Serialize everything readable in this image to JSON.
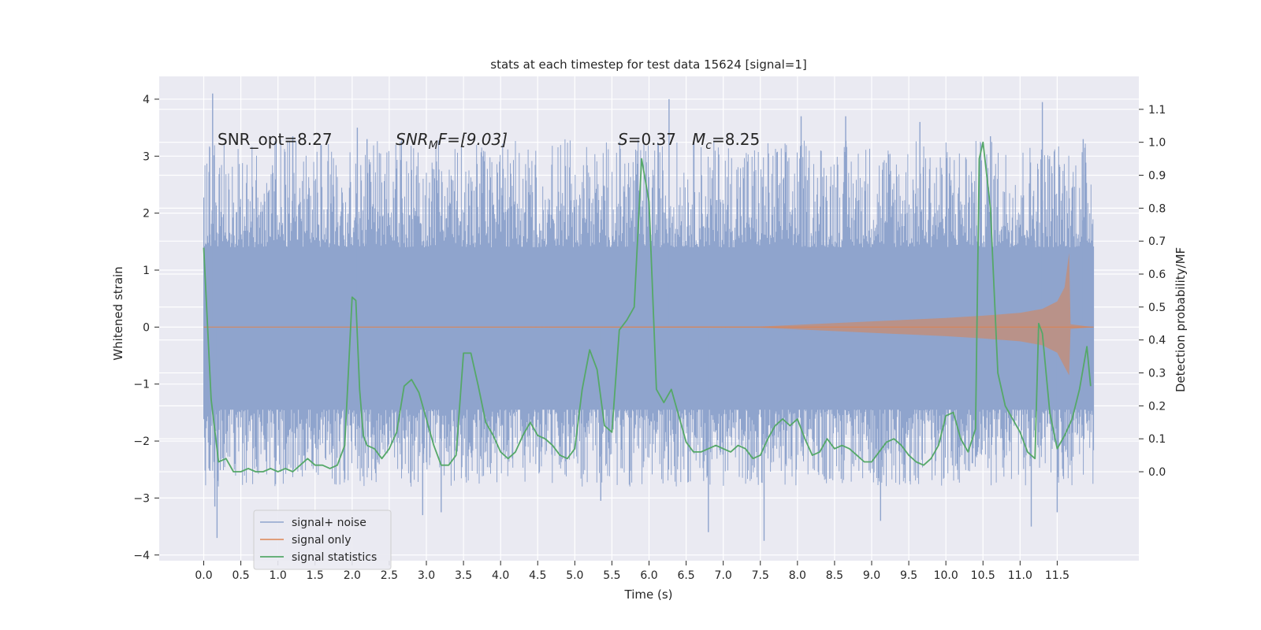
{
  "chart_data": {
    "type": "line",
    "title": "stats at each timestep for test data 15624 [signal=1]",
    "xlabel": "Time (s)",
    "ylabel": "Whitened strain",
    "y2label": "Detection probability/MF",
    "xlim": [
      -0.6,
      12.6
    ],
    "ylim": [
      -4.1,
      4.4
    ],
    "y2lim": [
      -0.27,
      1.2
    ],
    "x_ticks": [
      0.0,
      0.5,
      1.0,
      1.5,
      2.0,
      2.5,
      3.0,
      3.5,
      4.0,
      4.5,
      5.0,
      5.5,
      6.0,
      6.5,
      7.0,
      7.5,
      8.0,
      8.5,
      9.0,
      9.5,
      10.0,
      10.5,
      11.0,
      11.5
    ],
    "x_tick_labels": [
      "0.0",
      "0.5",
      "1.0",
      "1.5",
      "2.0",
      "2.5",
      "3.0",
      "3.5",
      "4.0",
      "4.5",
      "5.0",
      "5.5",
      "6.0",
      "6.5",
      "7.0",
      "7.5",
      "8.0",
      "8.5",
      "9.0",
      "9.5",
      "10.0",
      "10.5",
      "11.0",
      "11.5"
    ],
    "y_ticks": [
      -4,
      -3,
      -2,
      -1,
      0,
      1,
      2,
      3,
      4
    ],
    "y_tick_labels": [
      "−4",
      "−3",
      "−2",
      "−1",
      "0",
      "1",
      "2",
      "3",
      "4"
    ],
    "y2_ticks": [
      0.0,
      0.1,
      0.2,
      0.3,
      0.4,
      0.5,
      0.6,
      0.7,
      0.8,
      0.9,
      1.0,
      1.1
    ],
    "y2_tick_labels": [
      "0.0",
      "0.1",
      "0.2",
      "0.3",
      "0.4",
      "0.5",
      "0.6",
      "0.7",
      "0.8",
      "0.9",
      "1.0",
      "1.1"
    ],
    "grid": true,
    "legend_position": "lower-left",
    "annotations": {
      "snr_opt": "SNR_opt=8.27",
      "snr_mf_main": "SNR",
      "snr_mf_sub": "M",
      "snr_mf_rest": "F=[9.03]",
      "s_main": "S",
      "s_rest": "=0.37",
      "mc_main": "M",
      "mc_sub": "c",
      "mc_rest": "=8.25"
    },
    "colors": {
      "background": "#eaeaf2",
      "grid": "#ffffff",
      "noise": "#8fa4cd",
      "signal": "#dd8452",
      "stats": "#55a868",
      "text": "#262626"
    },
    "series": [
      {
        "name": "signal+ noise",
        "kind": "noise-band",
        "x_range": [
          0.0,
          11.99
        ],
        "core_band": [
          -1.45,
          1.4
        ],
        "typical_extremes": [
          -2.4,
          2.0
        ],
        "peak_spikes": [
          {
            "x": 0.12,
            "y": 4.1
          },
          {
            "x": 0.08,
            "y": 3.15
          },
          {
            "x": 0.18,
            "y": -3.7
          },
          {
            "x": 0.15,
            "y": -3.15
          },
          {
            "x": 2.07,
            "y": 3.5
          },
          {
            "x": 2.2,
            "y": 3.3
          },
          {
            "x": 1.2,
            "y": 3.35
          },
          {
            "x": 2.95,
            "y": -3.3
          },
          {
            "x": 3.2,
            "y": -3.25
          },
          {
            "x": 6.27,
            "y": 4.0
          },
          {
            "x": 6.8,
            "y": -3.6
          },
          {
            "x": 5.35,
            "y": -3.05
          },
          {
            "x": 7.55,
            "y": -3.75
          },
          {
            "x": 8.05,
            "y": 3.7
          },
          {
            "x": 8.65,
            "y": 3.7
          },
          {
            "x": 9.12,
            "y": -3.4
          },
          {
            "x": 9.65,
            "y": 3.6
          },
          {
            "x": 10.6,
            "y": 3.35
          },
          {
            "x": 11.15,
            "y": -3.5
          },
          {
            "x": 11.3,
            "y": 3.95
          },
          {
            "x": 11.5,
            "y": -3.25
          },
          {
            "x": 11.85,
            "y": 3.3
          }
        ]
      },
      {
        "name": "signal only",
        "kind": "chirp",
        "x_range": [
          0.0,
          11.99
        ],
        "envelope": [
          {
            "x": 0.0,
            "y": 0.0
          },
          {
            "x": 7.5,
            "y": 0.01
          },
          {
            "x": 8.0,
            "y": 0.04
          },
          {
            "x": 9.0,
            "y": 0.1
          },
          {
            "x": 10.0,
            "y": 0.16
          },
          {
            "x": 10.5,
            "y": 0.2
          },
          {
            "x": 11.0,
            "y": 0.25
          },
          {
            "x": 11.3,
            "y": 0.32
          },
          {
            "x": 11.5,
            "y": 0.45
          },
          {
            "x": 11.6,
            "y": 0.7
          },
          {
            "x": 11.66,
            "y": 1.3
          },
          {
            "x": 11.68,
            "y": 0.05
          },
          {
            "x": 11.99,
            "y": 0.0
          }
        ]
      },
      {
        "name": "signal statistics",
        "kind": "line",
        "axis": "right",
        "x": [
          0.0,
          0.1,
          0.2,
          0.3,
          0.4,
          0.5,
          0.6,
          0.7,
          0.8,
          0.9,
          1.0,
          1.1,
          1.2,
          1.3,
          1.4,
          1.5,
          1.6,
          1.7,
          1.8,
          1.9,
          2.0,
          2.05,
          2.1,
          2.15,
          2.2,
          2.3,
          2.4,
          2.5,
          2.6,
          2.7,
          2.8,
          2.9,
          3.0,
          3.1,
          3.2,
          3.3,
          3.4,
          3.5,
          3.6,
          3.7,
          3.8,
          3.9,
          4.0,
          4.1,
          4.2,
          4.3,
          4.4,
          4.5,
          4.6,
          4.7,
          4.8,
          4.9,
          5.0,
          5.1,
          5.2,
          5.3,
          5.4,
          5.5,
          5.6,
          5.7,
          5.8,
          5.9,
          6.0,
          6.1,
          6.2,
          6.3,
          6.4,
          6.5,
          6.6,
          6.7,
          6.8,
          6.9,
          7.0,
          7.1,
          7.2,
          7.3,
          7.4,
          7.5,
          7.6,
          7.7,
          7.8,
          7.9,
          8.0,
          8.1,
          8.2,
          8.3,
          8.4,
          8.5,
          8.6,
          8.7,
          8.8,
          8.9,
          9.0,
          9.1,
          9.2,
          9.3,
          9.4,
          9.5,
          9.6,
          9.7,
          9.8,
          9.9,
          10.0,
          10.1,
          10.2,
          10.3,
          10.4,
          10.45,
          10.5,
          10.6,
          10.7,
          10.8,
          10.9,
          11.0,
          11.1,
          11.2,
          11.25,
          11.3,
          11.4,
          11.5,
          11.6,
          11.7,
          11.8,
          11.9,
          11.95
        ],
        "values": [
          0.68,
          0.22,
          0.03,
          0.04,
          0.0,
          0.0,
          0.01,
          0.0,
          0.0,
          0.01,
          0.0,
          0.01,
          0.0,
          0.02,
          0.04,
          0.02,
          0.02,
          0.01,
          0.02,
          0.08,
          0.53,
          0.52,
          0.25,
          0.11,
          0.08,
          0.07,
          0.04,
          0.07,
          0.12,
          0.26,
          0.28,
          0.24,
          0.16,
          0.08,
          0.02,
          0.02,
          0.05,
          0.36,
          0.36,
          0.26,
          0.15,
          0.11,
          0.06,
          0.04,
          0.06,
          0.11,
          0.15,
          0.11,
          0.1,
          0.08,
          0.05,
          0.04,
          0.07,
          0.25,
          0.37,
          0.31,
          0.14,
          0.12,
          0.43,
          0.46,
          0.5,
          0.95,
          0.82,
          0.25,
          0.21,
          0.25,
          0.17,
          0.09,
          0.06,
          0.06,
          0.07,
          0.08,
          0.07,
          0.06,
          0.08,
          0.07,
          0.04,
          0.05,
          0.1,
          0.14,
          0.16,
          0.14,
          0.16,
          0.1,
          0.05,
          0.06,
          0.1,
          0.07,
          0.08,
          0.07,
          0.05,
          0.03,
          0.03,
          0.06,
          0.09,
          0.1,
          0.08,
          0.05,
          0.03,
          0.02,
          0.04,
          0.08,
          0.17,
          0.18,
          0.1,
          0.06,
          0.13,
          0.95,
          1.0,
          0.8,
          0.3,
          0.2,
          0.16,
          0.12,
          0.06,
          0.04,
          0.45,
          0.42,
          0.18,
          0.07,
          0.11,
          0.16,
          0.25,
          0.38,
          0.26
        ]
      }
    ]
  }
}
